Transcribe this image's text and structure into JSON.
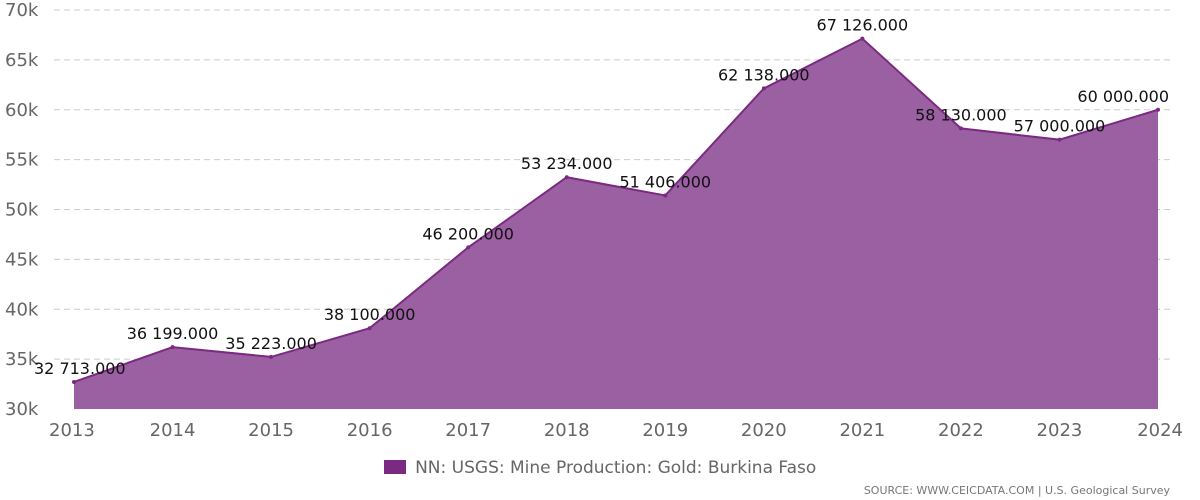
{
  "chart_data": {
    "type": "area",
    "x": [
      "2013",
      "2014",
      "2015",
      "2016",
      "2017",
      "2018",
      "2019",
      "2020",
      "2021",
      "2022",
      "2023",
      "2024"
    ],
    "series": [
      {
        "name": "NN: USGS: Mine Production: Gold: Burkina Faso",
        "values": [
          32713,
          36199,
          35223,
          38100,
          46200,
          53234,
          51406,
          62138,
          67126,
          58130,
          57000,
          60000
        ],
        "labels": [
          "32 713.000",
          "36 199.000",
          "35 223.000",
          "38 100.000",
          "46 200.000",
          "53 234.000",
          "51 406.000",
          "62 138.000",
          "67 126.000",
          "58 130.000",
          "57 000.000",
          "60 000.000"
        ]
      }
    ],
    "ylim": [
      30000,
      70000
    ],
    "y_ticks": [
      30000,
      35000,
      40000,
      45000,
      50000,
      55000,
      60000,
      65000,
      70000
    ],
    "y_tick_labels": [
      "30k",
      "35k",
      "40k",
      "45k",
      "50k",
      "55k",
      "60k",
      "65k",
      "70k"
    ],
    "grid": true,
    "legend_position": "bottom-center",
    "colors": {
      "line": "#7a2a80",
      "fill": "#9a60a2",
      "legend_swatch": "#7a2a80",
      "grid": "#cccccc"
    }
  },
  "source_text": "SOURCE: WWW.CEICDATA.COM | U.S. Geological Survey"
}
